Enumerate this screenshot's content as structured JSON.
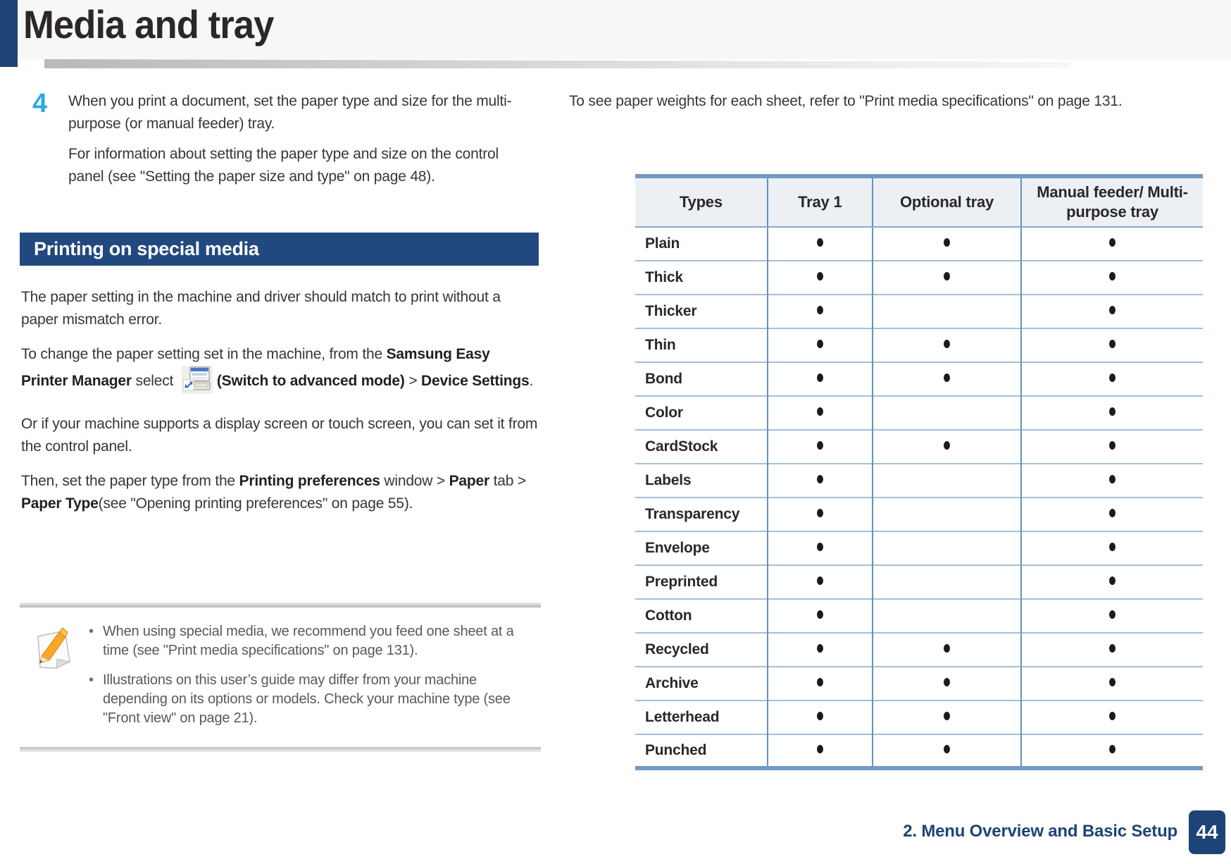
{
  "header": {
    "title": "Media and tray"
  },
  "step": {
    "number": "4",
    "para1": "When you print a document, set the paper type and size for the multi-purpose (or manual feeder) tray.",
    "para2": "For information about setting the paper type and size on the control panel (see \"Setting the paper size and type\" on page 48)."
  },
  "section": {
    "title": "Printing on special media"
  },
  "left": {
    "para1": "The paper setting in the machine and driver should match to print without a paper mismatch error.",
    "para2": {
      "s0": "To change the paper setting set in the machine, from the ",
      "s1": "Samsung Easy Printer Manager",
      "s2": " select ",
      "s3": "(Switch to advanced mode)",
      "s4": " > ",
      "s5": "Device Settings",
      "s6": "."
    },
    "para3": "Or if your machine supports a display screen or touch screen, you can set it from the control panel.",
    "para4": {
      "s0": "Then, set the paper type from the ",
      "s1": "Printing preferences",
      "s2": " window > ",
      "s3": "Paper",
      "s4": " tab > ",
      "s5": "Paper Type",
      "s6": "(see \"Opening printing preferences\" on page 55)."
    },
    "note": {
      "bullets": [
        "When using special media, we recommend you feed one sheet at a time (see \"Print media specifications\" on page 131).",
        "Illustrations on this user’s guide may differ from your machine depending on its options or models. Check your machine type (see \"Front view\" on page 21)."
      ]
    }
  },
  "right": {
    "intro": "To see paper weights for each sheet, refer to \"Print media specifications\" on page 131.",
    "table": {
      "headers": [
        "Types",
        "Tray 1",
        "Optional tray",
        "Manual feeder/ Multi-purpose tray"
      ],
      "rows": [
        {
          "type": "Plain",
          "tray1": true,
          "optional": true,
          "manual": true
        },
        {
          "type": "Thick",
          "tray1": true,
          "optional": true,
          "manual": true
        },
        {
          "type": "Thicker",
          "tray1": true,
          "optional": false,
          "manual": true
        },
        {
          "type": "Thin",
          "tray1": true,
          "optional": true,
          "manual": true
        },
        {
          "type": "Bond",
          "tray1": true,
          "optional": true,
          "manual": true
        },
        {
          "type": "Color",
          "tray1": true,
          "optional": false,
          "manual": true
        },
        {
          "type": "CardStock",
          "tray1": true,
          "optional": true,
          "manual": true
        },
        {
          "type": "Labels",
          "tray1": true,
          "optional": false,
          "manual": true
        },
        {
          "type": "Transparency",
          "tray1": true,
          "optional": false,
          "manual": true
        },
        {
          "type": "Envelope",
          "tray1": true,
          "optional": false,
          "manual": true
        },
        {
          "type": "Preprinted",
          "tray1": true,
          "optional": false,
          "manual": true
        },
        {
          "type": "Cotton",
          "tray1": true,
          "optional": false,
          "manual": true
        },
        {
          "type": "Recycled",
          "tray1": true,
          "optional": true,
          "manual": true
        },
        {
          "type": "Archive",
          "tray1": true,
          "optional": true,
          "manual": true
        },
        {
          "type": "Letterhead",
          "tray1": true,
          "optional": true,
          "manual": true
        },
        {
          "type": "Punched",
          "tray1": true,
          "optional": true,
          "manual": true
        }
      ],
      "dot_glyph": "●"
    }
  },
  "footer": {
    "chapter": "2. Menu Overview and Basic Setup",
    "page": "44"
  },
  "icons": {
    "note_icon": "pencil-on-paper",
    "manager_icon": "printer-manager-shortcut"
  },
  "colors": {
    "accent_navy": "#1e4376",
    "section_bar": "#21497f",
    "step_cyan": "#29abe2",
    "table_border_heavy": "#7199c4",
    "table_border_vertical": "#6590bd",
    "table_header_bg": "#ecf0f5",
    "note_text_gray": "#58595b"
  }
}
